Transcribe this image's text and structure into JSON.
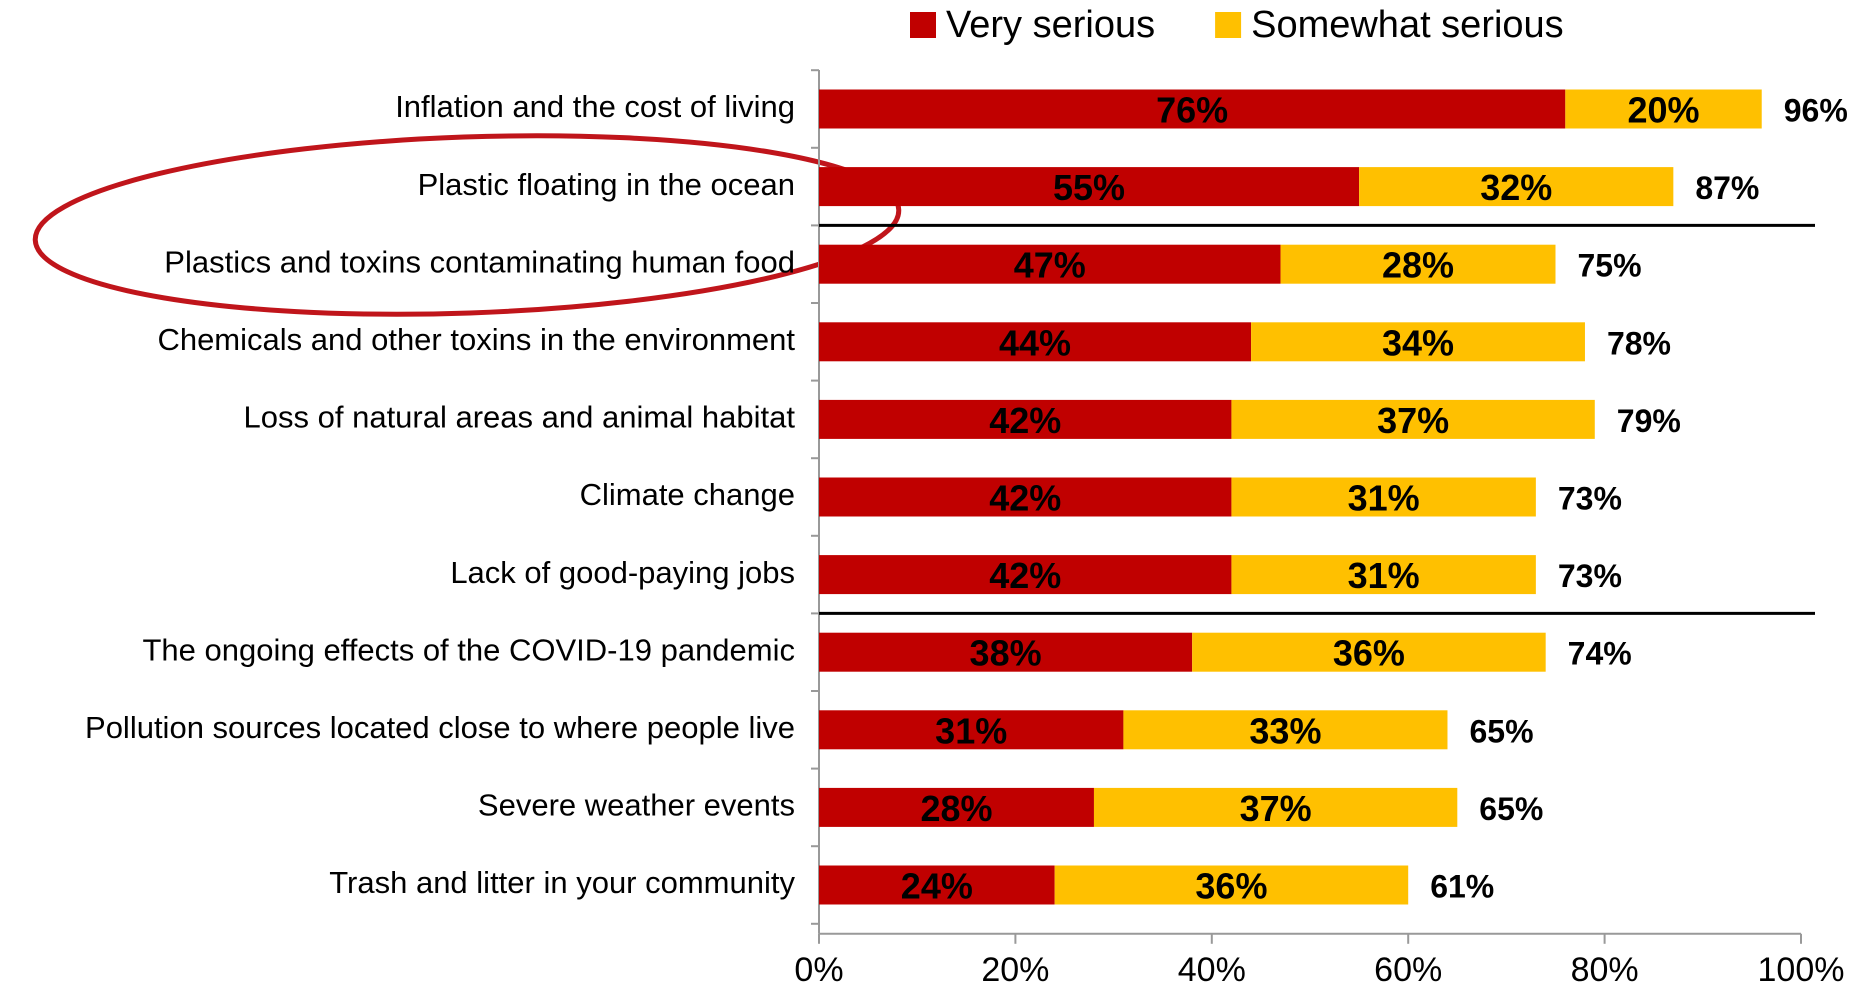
{
  "chart_data": {
    "type": "stacked-bar-horizontal",
    "categories": [
      "Inflation and the cost of living",
      "Plastic floating in the ocean",
      "Plastics and toxins contaminating human food",
      "Chemicals and other toxins in the environment",
      "Loss of natural areas and animal habitat",
      "Climate change",
      "Lack of good-paying jobs",
      "The ongoing effects of the COVID-19 pandemic",
      "Pollution sources located close to where people live",
      "Severe weather events",
      "Trash and litter in your community"
    ],
    "series": [
      {
        "name": "Very serious",
        "color": "#c00000",
        "values": [
          76,
          55,
          47,
          44,
          42,
          42,
          42,
          38,
          31,
          28,
          24
        ],
        "value_labels": [
          "76%",
          "55%",
          "47%",
          "44%",
          "42%",
          "42%",
          "42%",
          "38%",
          "31%",
          "28%",
          "24%"
        ]
      },
      {
        "name": "Somewhat serious",
        "color": "#ffc000",
        "values": [
          20,
          32,
          28,
          34,
          37,
          31,
          31,
          36,
          33,
          37,
          36
        ],
        "value_labels": [
          "20%",
          "32%",
          "28%",
          "34%",
          "37%",
          "31%",
          "31%",
          "36%",
          "33%",
          "37%",
          "36%"
        ]
      }
    ],
    "totals": [
      96,
      87,
      75,
      78,
      79,
      73,
      73,
      74,
      65,
      65,
      61
    ],
    "total_labels": [
      "96%",
      "87%",
      "75%",
      "78%",
      "79%",
      "73%",
      "73%",
      "74%",
      "65%",
      "65%",
      "61%"
    ],
    "xlim": [
      0,
      100
    ],
    "xticks": [
      {
        "value": 0,
        "label": "0%"
      },
      {
        "value": 20,
        "label": "20%"
      },
      {
        "value": 40,
        "label": "40%"
      },
      {
        "value": 60,
        "label": "60%"
      },
      {
        "value": 80,
        "label": "80%"
      },
      {
        "value": 100,
        "label": "100%"
      }
    ],
    "legend": "top"
  }
}
